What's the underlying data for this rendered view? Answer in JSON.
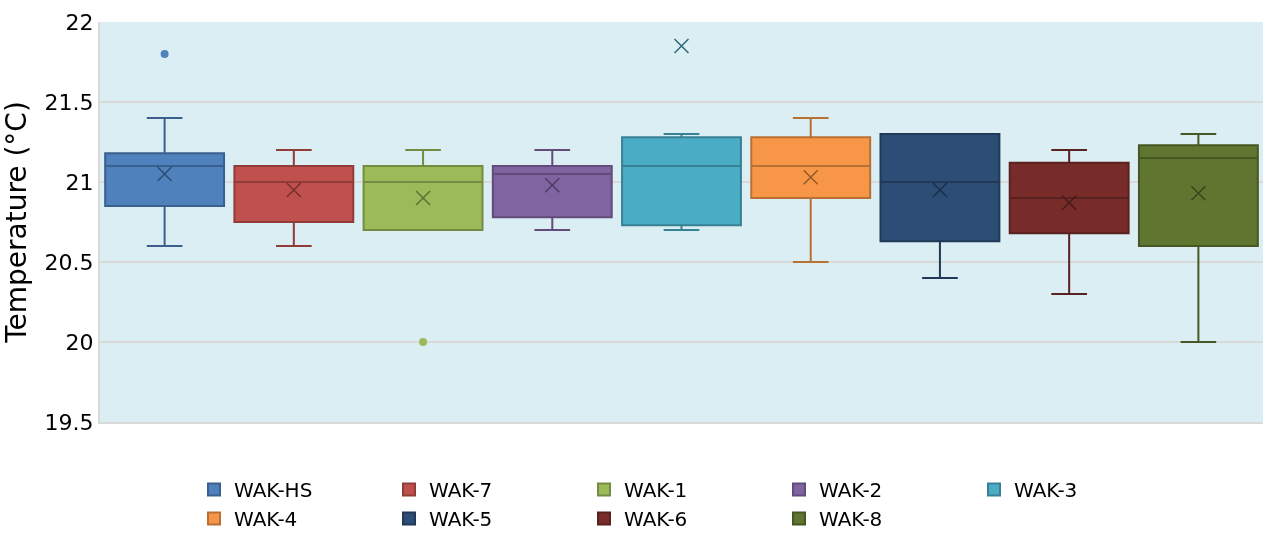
{
  "chart_data": {
    "type": "box",
    "ylabel": "Temperature (°C)",
    "categories": [
      null,
      null,
      null,
      null,
      null,
      null,
      null,
      null,
      null
    ],
    "ylim": [
      19.5,
      22
    ],
    "yticks": [
      19.5,
      20,
      20.5,
      21,
      21.5,
      22
    ],
    "grid": "y",
    "legend": "bottom",
    "tick_labels": "y",
    "marker": "x",
    "series": [
      {
        "name": "WAK-HS",
        "color": "#4f81bd",
        "boxes": [
          {
            "low": 20.6,
            "q1": 20.85,
            "median": 21.1,
            "q3": 21.18,
            "high": 21.4,
            "mean": 21.05,
            "outliers": [
              21.8
            ]
          },
          null,
          null,
          null,
          null,
          null,
          null,
          null,
          null
        ]
      },
      {
        "name": "WAK-7",
        "color": "#c0504d",
        "boxes": [
          null,
          {
            "low": 20.6,
            "q1": 20.75,
            "median": 21.0,
            "q3": 21.1,
            "high": 21.2,
            "mean": 20.95
          },
          null,
          null,
          null,
          null,
          null,
          null,
          null
        ]
      },
      {
        "name": "WAK-1",
        "color": "#9bbb59",
        "boxes": [
          null,
          null,
          {
            "low": 20.7,
            "q1": 20.7,
            "median": 21.0,
            "q3": 21.1,
            "high": 21.2,
            "mean": 20.9,
            "outliers": [
              20.0
            ]
          },
          null,
          null,
          null,
          null,
          null,
          null
        ]
      },
      {
        "name": "WAK-2",
        "color": "#8064a2",
        "boxes": [
          null,
          null,
          null,
          {
            "low": 20.7,
            "q1": 20.78,
            "median": 21.05,
            "q3": 21.1,
            "high": 21.2,
            "mean": 20.98
          },
          null,
          null,
          null,
          null,
          null
        ]
      },
      {
        "name": "WAK-3",
        "color": "#4bacc6",
        "boxes": [
          null,
          null,
          null,
          null,
          {
            "low": 20.7,
            "q1": 20.73,
            "median": 21.1,
            "q3": 21.28,
            "high": 21.3,
            "mean": 21.85
          },
          null,
          null,
          null,
          null
        ]
      },
      {
        "name": "WAK-4",
        "color": "#f79646",
        "boxes": [
          null,
          null,
          null,
          null,
          null,
          {
            "low": 20.5,
            "q1": 20.9,
            "median": 21.1,
            "q3": 21.28,
            "high": 21.4,
            "mean": 21.03
          },
          null,
          null,
          null
        ]
      },
      {
        "name": "WAK-5",
        "color": "#2c4d75",
        "boxes": [
          null,
          null,
          null,
          null,
          null,
          null,
          {
            "low": 20.4,
            "q1": 20.63,
            "median": 21.0,
            "q3": 21.3,
            "high": 21.3,
            "mean": 20.95
          },
          null,
          null
        ]
      },
      {
        "name": "WAK-6",
        "color": "#772c2a",
        "boxes": [
          null,
          null,
          null,
          null,
          null,
          null,
          null,
          {
            "low": 20.3,
            "q1": 20.68,
            "median": 20.9,
            "q3": 21.12,
            "high": 21.2,
            "mean": 20.87
          },
          null
        ]
      },
      {
        "name": "WAK-8",
        "color": "#5f7530",
        "boxes": [
          null,
          null,
          null,
          null,
          null,
          null,
          null,
          null,
          {
            "low": 20.0,
            "q1": 20.6,
            "median": 21.15,
            "q3": 21.23,
            "high": 21.3,
            "mean": 20.93
          }
        ]
      }
    ]
  }
}
